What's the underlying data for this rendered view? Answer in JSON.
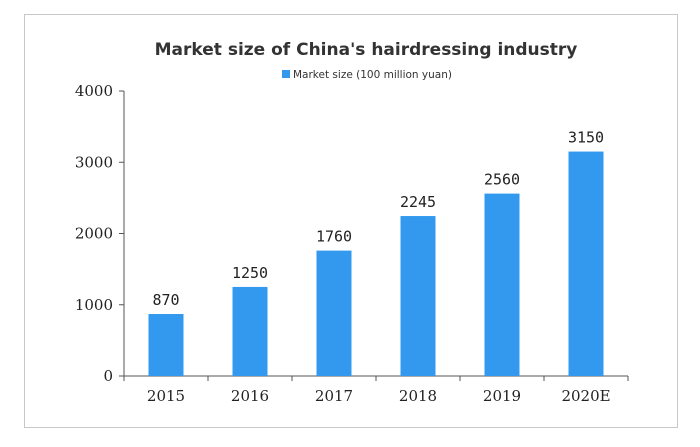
{
  "chart_data": {
    "type": "bar",
    "title": "Market size of China's hairdressing industry",
    "xlabel": "",
    "ylabel": "",
    "categories": [
      "2015",
      "2016",
      "2017",
      "2018",
      "2019",
      "2020E"
    ],
    "series": [
      {
        "name": "Market size (100 million yuan)",
        "values": [
          870,
          1250,
          1760,
          2245,
          2560,
          3150
        ],
        "color": "#3399ee"
      }
    ],
    "ylim": [
      0,
      4000
    ],
    "yticks": [
      0,
      1000,
      2000,
      3000,
      4000
    ],
    "grid": false,
    "legend_position": "top-center",
    "data_labels": [
      "870",
      "1250",
      "1760",
      "2245",
      "2560",
      "3150"
    ]
  }
}
